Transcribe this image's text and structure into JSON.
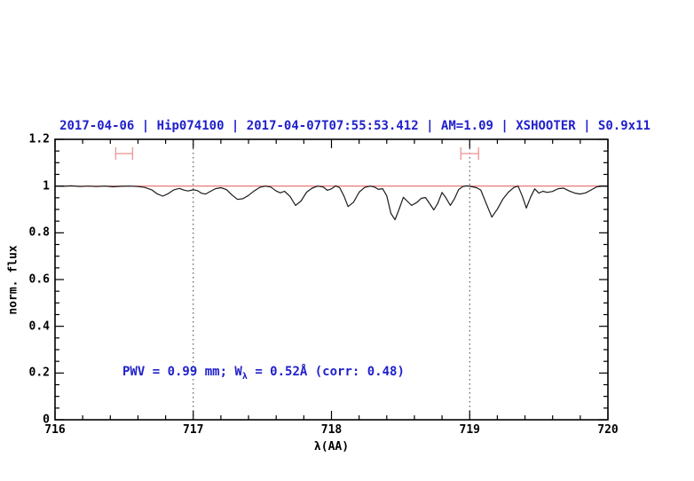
{
  "colors": {
    "background": "#ffffff",
    "title_text": "#2020cc",
    "annotation_text": "#2020cc",
    "continuum_line": "#e46a6a",
    "band_marker": "#f09a9a",
    "spectrum_line": "#1c1c1c",
    "vline": "#3a3a3a",
    "frame": "#000000"
  },
  "annotation": {
    "part1": "PWV = 0.99 mm; W",
    "sub": "λ",
    "part2": " = 0.52Å (corr: 0.48)"
  },
  "chart_data": {
    "type": "line",
    "title": "2017-04-06 | Hip074100 | 2017-04-07T07:55:53.412 | AM=1.09 | XSHOOTER | S0.9x11",
    "xlabel": "λ(AA)",
    "ylabel": "norm. flux",
    "xlim": [
      716,
      720
    ],
    "ylim": [
      0,
      1.2
    ],
    "grid": "off",
    "legend": "none",
    "x_major_ticks": [
      716,
      717,
      718,
      719,
      720
    ],
    "x_tick_labels": [
      "716",
      "717",
      "718",
      "719",
      "720"
    ],
    "x_minor_step": 0.2,
    "y_major_ticks": [
      0,
      0.2,
      0.4,
      0.6,
      0.8,
      1,
      1.2
    ],
    "y_tick_labels": [
      "0",
      "0.2",
      "0.4",
      "0.6",
      "0.8",
      "1",
      "1.2"
    ],
    "y_minor_step": 0.05,
    "vlines": [
      717,
      719
    ],
    "band_markers": [
      {
        "center": 716.5,
        "half_width": 0.061,
        "flux_level": 1.139,
        "cap_half_height": 0.027
      },
      {
        "center": 719.0,
        "half_width": 0.064,
        "flux_level": 1.139,
        "cap_half_height": 0.027
      }
    ],
    "series": [
      {
        "name": "continuum_fit",
        "x": [
          716,
          720
        ],
        "y": [
          1.0,
          1.0
        ]
      },
      {
        "name": "observed_spectrum",
        "x": [
          716.0,
          716.06,
          716.12,
          716.18,
          716.24,
          716.3,
          716.36,
          716.42,
          716.48,
          716.54,
          716.6,
          716.65,
          716.7,
          716.74,
          716.78,
          716.82,
          716.86,
          716.9,
          716.93,
          716.96,
          717.0,
          717.03,
          717.06,
          717.09,
          717.12,
          717.16,
          717.2,
          717.24,
          717.28,
          717.32,
          717.36,
          717.4,
          717.44,
          717.48,
          717.52,
          717.56,
          717.6,
          717.63,
          717.66,
          717.7,
          717.74,
          717.78,
          717.82,
          717.86,
          717.9,
          717.94,
          717.97,
          718.0,
          718.03,
          718.06,
          718.09,
          718.12,
          718.16,
          718.2,
          718.24,
          718.28,
          718.31,
          718.34,
          718.37,
          718.4,
          718.43,
          718.46,
          718.49,
          718.52,
          718.55,
          718.58,
          718.62,
          718.65,
          718.68,
          718.71,
          718.74,
          718.77,
          718.8,
          718.83,
          718.86,
          718.89,
          718.92,
          718.95,
          718.98,
          719.02,
          719.05,
          719.08,
          719.12,
          719.16,
          719.2,
          719.24,
          719.28,
          719.32,
          719.35,
          719.38,
          719.41,
          719.44,
          719.47,
          719.5,
          719.53,
          719.56,
          719.6,
          719.64,
          719.68,
          719.72,
          719.76,
          719.8,
          719.84,
          719.88,
          719.92,
          719.96,
          720.0
        ],
        "y": [
          1.0,
          0.999,
          1.001,
          0.998,
          1.0,
          0.998,
          1.0,
          0.997,
          0.999,
          1.0,
          0.998,
          0.994,
          0.984,
          0.966,
          0.957,
          0.968,
          0.984,
          0.99,
          0.983,
          0.979,
          0.984,
          0.981,
          0.969,
          0.966,
          0.976,
          0.989,
          0.993,
          0.985,
          0.962,
          0.943,
          0.946,
          0.96,
          0.979,
          0.994,
          1.0,
          0.996,
          0.979,
          0.971,
          0.978,
          0.956,
          0.917,
          0.936,
          0.974,
          0.991,
          1.0,
          0.996,
          0.982,
          0.988,
          1.001,
          0.993,
          0.958,
          0.912,
          0.931,
          0.974,
          0.994,
          1.0,
          0.996,
          0.986,
          0.989,
          0.958,
          0.883,
          0.856,
          0.902,
          0.952,
          0.934,
          0.917,
          0.931,
          0.948,
          0.951,
          0.925,
          0.898,
          0.927,
          0.973,
          0.948,
          0.917,
          0.946,
          0.985,
          0.998,
          1.001,
          0.997,
          0.993,
          0.983,
          0.925,
          0.867,
          0.901,
          0.944,
          0.974,
          0.994,
          1.0,
          0.958,
          0.906,
          0.952,
          0.988,
          0.97,
          0.978,
          0.973,
          0.977,
          0.989,
          0.991,
          0.979,
          0.97,
          0.966,
          0.971,
          0.984,
          0.997,
          1.0,
          0.999
        ]
      }
    ]
  }
}
